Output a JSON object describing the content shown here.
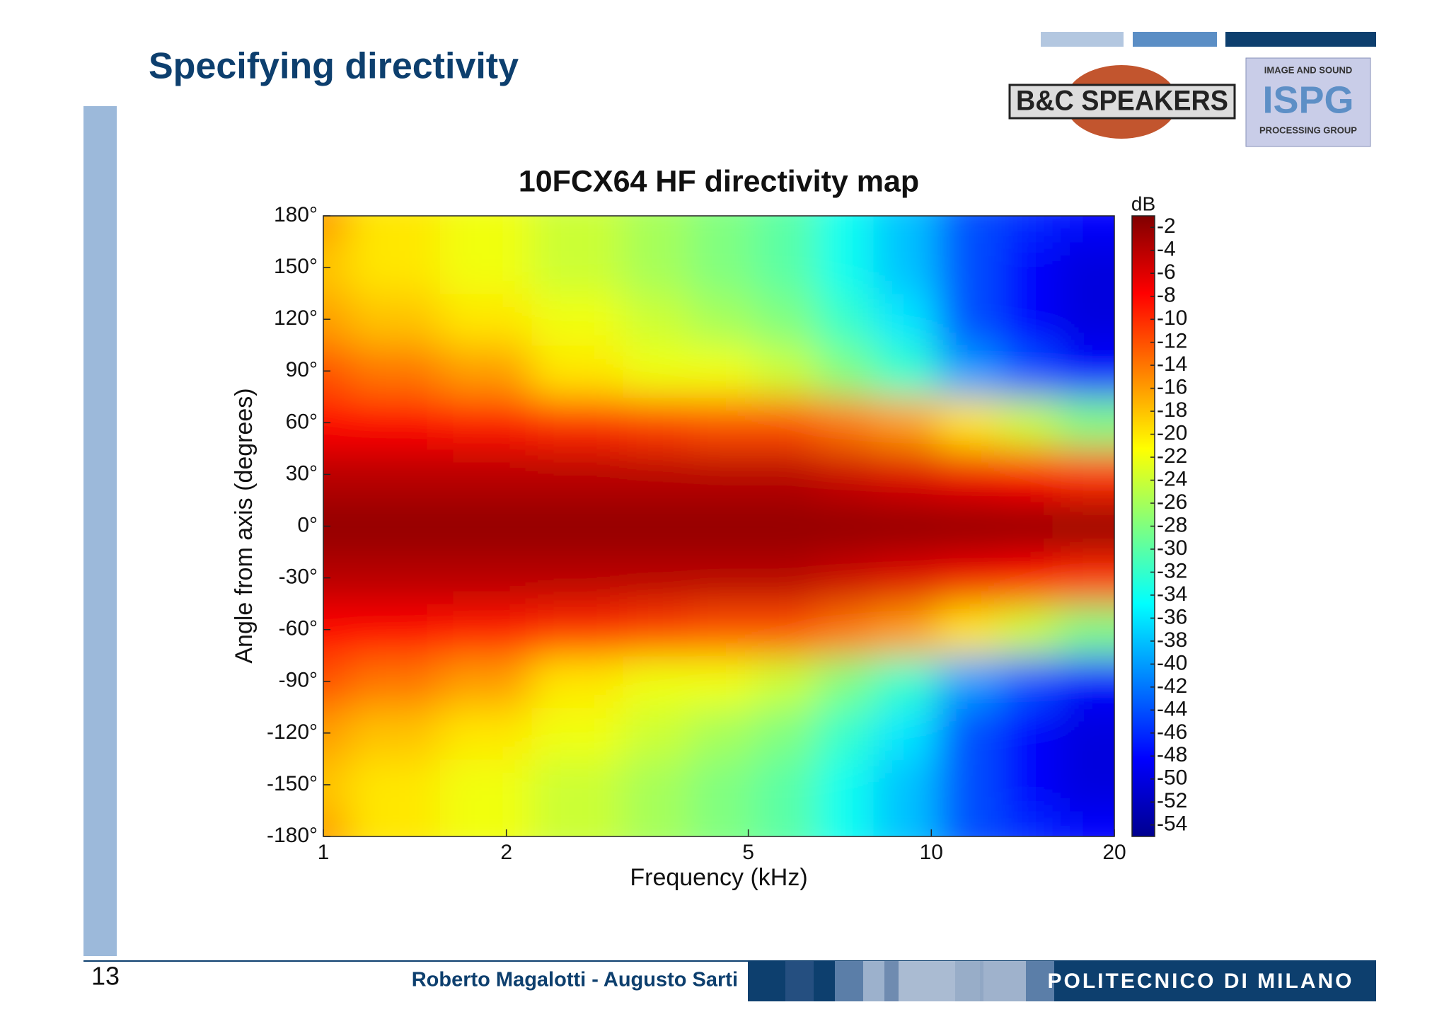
{
  "header": {
    "title": "Specifying directivity",
    "logo_left": "B&C SPEAKERS",
    "logo_right_top": "IMAGE AND SOUND",
    "logo_right_main": "ISPG",
    "logo_right_bottom": "PROCESSING GROUP"
  },
  "footer": {
    "page": "13",
    "authors": "Roberto Magalotti - Augusto Sarti",
    "institution": "POLITECNICO DI MILANO"
  },
  "chart_data": {
    "type": "contour",
    "title": "10FCX64 HF directivity map",
    "x_label": "Frequency (kHz)",
    "y_label": "Angle from axis (degrees)",
    "colorbar_label": "dB",
    "log_x": true,
    "x": [
      1,
      1.5,
      2,
      3,
      4,
      5,
      6.5,
      8,
      10,
      13,
      16,
      20
    ],
    "y": [
      -180,
      -150,
      -120,
      -90,
      -60,
      -30,
      0,
      30,
      60,
      90,
      120,
      150,
      180
    ],
    "z": [
      [
        -16,
        -20,
        -22,
        -24,
        -26,
        -28,
        -30,
        -34,
        -38,
        -44,
        -46,
        -48
      ],
      [
        -18,
        -20,
        -22,
        -24,
        -26,
        -28,
        -30,
        -34,
        -38,
        -44,
        -48,
        -50
      ],
      [
        -16,
        -18,
        -20,
        -22,
        -24,
        -26,
        -28,
        -32,
        -36,
        -44,
        -48,
        -50
      ],
      [
        -12,
        -14,
        -16,
        -20,
        -22,
        -22,
        -24,
        -28,
        -32,
        -40,
        -44,
        -48
      ],
      [
        -8,
        -8,
        -9,
        -10,
        -11,
        -12,
        -12,
        -14,
        -16,
        -20,
        -24,
        -28
      ],
      [
        -4,
        -4,
        -4,
        -4,
        -4,
        -4,
        -4,
        -5,
        -6,
        -7,
        -8,
        -10
      ],
      [
        -2,
        -2,
        -2,
        -2,
        -2,
        -2,
        -2,
        -2,
        -2,
        -2,
        -2,
        -2
      ],
      [
        -4,
        -4,
        -4,
        -4,
        -4,
        -4,
        -4,
        -5,
        -6,
        -7,
        -8,
        -10
      ],
      [
        -8,
        -8,
        -9,
        -10,
        -11,
        -12,
        -12,
        -14,
        -16,
        -20,
        -24,
        -28
      ],
      [
        -12,
        -14,
        -16,
        -20,
        -22,
        -22,
        -24,
        -28,
        -32,
        -40,
        -44,
        -48
      ],
      [
        -16,
        -18,
        -20,
        -22,
        -24,
        -26,
        -28,
        -32,
        -36,
        -44,
        -48,
        -50
      ],
      [
        -18,
        -20,
        -22,
        -24,
        -26,
        -28,
        -30,
        -34,
        -38,
        -44,
        -48,
        -50
      ],
      [
        -16,
        -20,
        -22,
        -24,
        -26,
        -28,
        -30,
        -34,
        -38,
        -44,
        -46,
        -48
      ]
    ],
    "xlim": [
      1,
      20
    ],
    "xticks": [
      1,
      2,
      5,
      10,
      20
    ],
    "ylim": [
      -180,
      180
    ],
    "yticks": [
      {
        "value": 180,
        "label": "180°"
      },
      {
        "value": 150,
        "label": "150°"
      },
      {
        "value": 120,
        "label": "120°"
      },
      {
        "value": 90,
        "label": "90°"
      },
      {
        "value": 60,
        "label": "60°"
      },
      {
        "value": 30,
        "label": "30°"
      },
      {
        "value": 0,
        "label": "0°"
      },
      {
        "value": -30,
        "label": "-30°"
      },
      {
        "value": -60,
        "label": "-60°"
      },
      {
        "value": -90,
        "label": "-90°"
      },
      {
        "value": -120,
        "label": "-120°"
      },
      {
        "value": -150,
        "label": "-150°"
      },
      {
        "value": -180,
        "label": "-180°"
      }
    ],
    "zlim": [
      -55,
      -1
    ],
    "zticks": [
      -2,
      -4,
      -6,
      -8,
      -10,
      -12,
      -14,
      -16,
      -18,
      -20,
      -22,
      -24,
      -26,
      -28,
      -30,
      -32,
      -34,
      -36,
      -38,
      -40,
      -42,
      -44,
      -46,
      -48,
      -50,
      -52,
      -54
    ],
    "colormap": "jet"
  }
}
